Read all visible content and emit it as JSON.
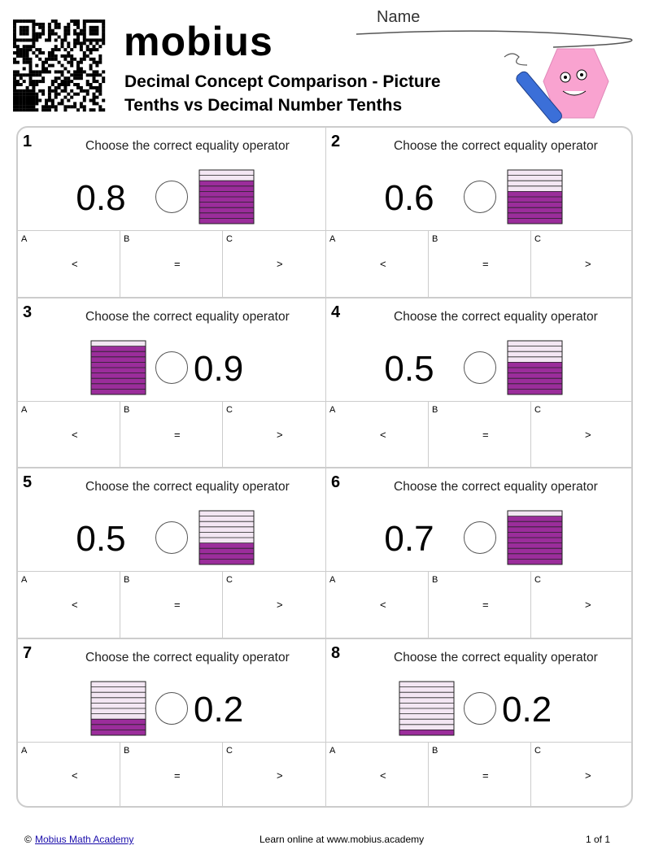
{
  "header": {
    "logo": "mobius",
    "title_line1": "Decimal Concept Comparison - Picture",
    "title_line2": "Tenths vs Decimal Number Tenths",
    "name_label": "Name"
  },
  "problems": [
    {
      "number": "1",
      "instruction": "Choose the correct equality operator",
      "decimal": "0.8",
      "shaded_tenths": 8,
      "picture_side": "right",
      "options": [
        {
          "letter": "A",
          "symbol": "<"
        },
        {
          "letter": "B",
          "symbol": "="
        },
        {
          "letter": "C",
          "symbol": ">"
        }
      ]
    },
    {
      "number": "2",
      "instruction": "Choose the correct equality operator",
      "decimal": "0.6",
      "shaded_tenths": 6,
      "picture_side": "right",
      "options": [
        {
          "letter": "A",
          "symbol": "<"
        },
        {
          "letter": "B",
          "symbol": "="
        },
        {
          "letter": "C",
          "symbol": ">"
        }
      ]
    },
    {
      "number": "3",
      "instruction": "Choose the correct equality operator",
      "decimal": "0.9",
      "shaded_tenths": 9,
      "picture_side": "left",
      "options": [
        {
          "letter": "A",
          "symbol": "<"
        },
        {
          "letter": "B",
          "symbol": "="
        },
        {
          "letter": "C",
          "symbol": ">"
        }
      ]
    },
    {
      "number": "4",
      "instruction": "Choose the correct equality operator",
      "decimal": "0.5",
      "shaded_tenths": 6,
      "picture_side": "right",
      "options": [
        {
          "letter": "A",
          "symbol": "<"
        },
        {
          "letter": "B",
          "symbol": "="
        },
        {
          "letter": "C",
          "symbol": ">"
        }
      ]
    },
    {
      "number": "5",
      "instruction": "Choose the correct equality operator",
      "decimal": "0.5",
      "shaded_tenths": 4,
      "picture_side": "right",
      "options": [
        {
          "letter": "A",
          "symbol": "<"
        },
        {
          "letter": "B",
          "symbol": "="
        },
        {
          "letter": "C",
          "symbol": ">"
        }
      ]
    },
    {
      "number": "6",
      "instruction": "Choose the correct equality operator",
      "decimal": "0.7",
      "shaded_tenths": 9,
      "picture_side": "right",
      "options": [
        {
          "letter": "A",
          "symbol": "<"
        },
        {
          "letter": "B",
          "symbol": "="
        },
        {
          "letter": "C",
          "symbol": ">"
        }
      ]
    },
    {
      "number": "7",
      "instruction": "Choose the correct equality operator",
      "decimal": "0.2",
      "shaded_tenths": 3,
      "picture_side": "left",
      "options": [
        {
          "letter": "A",
          "symbol": "<"
        },
        {
          "letter": "B",
          "symbol": "="
        },
        {
          "letter": "C",
          "symbol": ">"
        }
      ]
    },
    {
      "number": "8",
      "instruction": "Choose the correct equality operator",
      "decimal": "0.2",
      "shaded_tenths": 1,
      "picture_side": "left",
      "options": [
        {
          "letter": "A",
          "symbol": "<"
        },
        {
          "letter": "B",
          "symbol": "="
        },
        {
          "letter": "C",
          "symbol": ">"
        }
      ]
    }
  ],
  "footer": {
    "copyright": "©",
    "link": "Mobius Math Academy",
    "center": "Learn online at www.mobius.academy",
    "page": "1 of 1"
  }
}
